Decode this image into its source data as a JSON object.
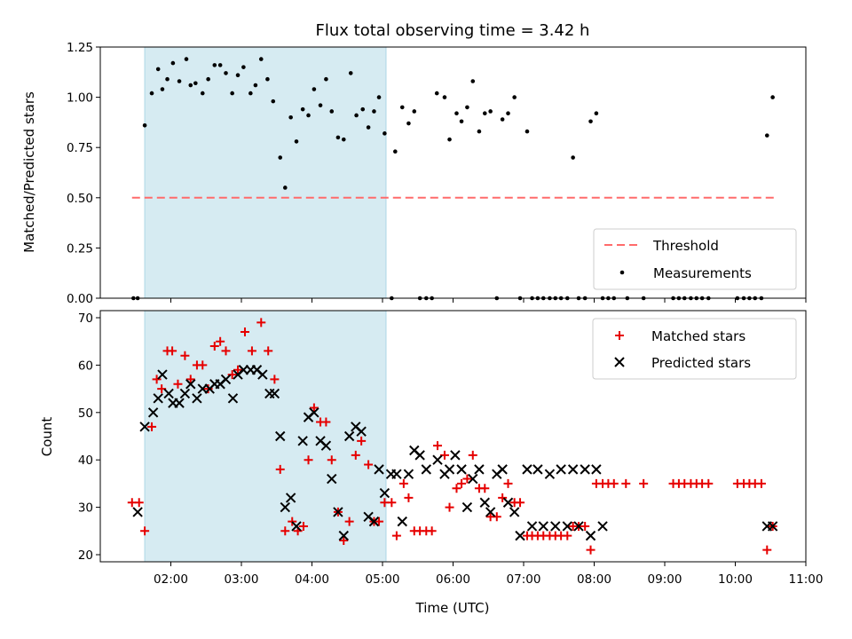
{
  "chart_data": [
    {
      "type": "scatter",
      "title": "Flux total observing time = 3.42 h",
      "xlabel": "",
      "ylabel": "Matched/Predicted stars",
      "xlim": [
        1.0,
        11.0
      ],
      "ylim": [
        0,
        1.25
      ],
      "yticks": [
        "0.00",
        "0.25",
        "0.50",
        "0.75",
        "1.00",
        "1.25"
      ],
      "shaded_interval": [
        1.63,
        5.05
      ],
      "threshold": {
        "name": "Threshold",
        "y": 0.5,
        "x_range": [
          1.45,
          10.55
        ],
        "color": "#ff6b6b"
      },
      "legend": {
        "position": "lower right",
        "entries": [
          "Threshold",
          "Measurements"
        ]
      },
      "series": [
        {
          "name": "Measurements",
          "color": "#000000",
          "x": [
            1.47,
            1.53,
            1.63,
            1.73,
            1.82,
            1.88,
            1.95,
            2.03,
            2.12,
            2.22,
            2.28,
            2.35,
            2.45,
            2.53,
            2.62,
            2.7,
            2.78,
            2.87,
            2.95,
            3.03,
            3.13,
            3.2,
            3.28,
            3.37,
            3.45,
            3.55,
            3.62,
            3.7,
            3.78,
            3.87,
            3.95,
            4.03,
            4.12,
            4.2,
            4.28,
            4.37,
            4.45,
            4.55,
            4.63,
            4.72,
            4.8,
            4.88,
            4.95,
            5.03,
            5.13,
            5.18,
            5.28,
            5.37,
            5.45,
            5.53,
            5.62,
            5.7,
            5.77,
            5.88,
            5.95,
            6.05,
            6.12,
            6.2,
            6.28,
            6.37,
            6.45,
            6.53,
            6.62,
            6.7,
            6.78,
            6.87,
            6.95,
            7.05,
            7.12,
            7.2,
            7.28,
            7.37,
            7.45,
            7.53,
            7.62,
            7.7,
            7.78,
            7.87,
            7.95,
            8.03,
            8.12,
            8.2,
            8.28,
            8.47,
            8.7,
            9.12,
            9.2,
            9.28,
            9.37,
            9.45,
            9.53,
            9.62,
            10.03,
            10.12,
            10.2,
            10.28,
            10.37,
            10.45,
            10.53
          ],
          "y": [
            0,
            0,
            0.86,
            1.02,
            1.14,
            1.04,
            1.09,
            1.17,
            1.08,
            1.19,
            1.06,
            1.07,
            1.02,
            1.09,
            1.16,
            1.16,
            1.12,
            1.02,
            1.11,
            1.15,
            1.02,
            1.06,
            1.19,
            1.09,
            0.98,
            0.7,
            0.55,
            0.9,
            0.78,
            0.94,
            0.91,
            1.04,
            0.96,
            1.09,
            0.93,
            0.8,
            0.79,
            1.12,
            0.91,
            0.94,
            0.85,
            0.93,
            1.0,
            0.82,
            0,
            0.73,
            0.95,
            0.87,
            0.93,
            0,
            0,
            0,
            1.02,
            1.0,
            0.79,
            0.92,
            0.88,
            0.95,
            1.08,
            0.83,
            0.92,
            0.93,
            0,
            0.89,
            0.92,
            1.0,
            0,
            0.83,
            0,
            0,
            0,
            0,
            0,
            0,
            0,
            0.7,
            0,
            0,
            0.88,
            0.92,
            0,
            0,
            0,
            0,
            0,
            0,
            0,
            0,
            0,
            0,
            0,
            0,
            0,
            0,
            0,
            0,
            0,
            0.81,
            1.0
          ]
        }
      ]
    },
    {
      "type": "scatter",
      "title": "",
      "xlabel": "Time (UTC)",
      "ylabel": "Count",
      "xlim": [
        1.0,
        11.0
      ],
      "ylim": [
        18.5,
        71.5
      ],
      "xticks": [
        "02:00",
        "03:00",
        "04:00",
        "05:00",
        "06:00",
        "07:00",
        "08:00",
        "09:00",
        "10:00",
        "11:00"
      ],
      "yticks": [
        "20",
        "30",
        "40",
        "50",
        "60",
        "70"
      ],
      "shaded_interval": [
        1.63,
        5.05
      ],
      "legend": {
        "position": "upper right",
        "entries": [
          "Matched stars",
          "Predicted stars"
        ]
      },
      "series": [
        {
          "name": "Matched stars",
          "marker": "+",
          "color": "#e60000",
          "x": [
            1.45,
            1.55,
            1.63,
            1.73,
            1.8,
            1.87,
            1.95,
            2.02,
            2.1,
            2.2,
            2.28,
            2.37,
            2.45,
            2.53,
            2.62,
            2.7,
            2.78,
            2.87,
            2.95,
            3.05,
            3.15,
            3.28,
            3.38,
            3.47,
            3.55,
            3.62,
            3.72,
            3.8,
            3.88,
            3.95,
            4.03,
            4.12,
            4.2,
            4.28,
            4.37,
            4.45,
            4.53,
            4.62,
            4.7,
            4.8,
            4.88,
            4.95,
            5.03,
            5.13,
            5.2,
            5.3,
            5.37,
            5.45,
            5.53,
            5.62,
            5.7,
            5.78,
            5.88,
            5.95,
            6.05,
            6.12,
            6.2,
            6.28,
            6.37,
            6.45,
            6.53,
            6.62,
            6.7,
            6.78,
            6.87,
            6.95,
            7.05,
            7.12,
            7.2,
            7.28,
            7.37,
            7.45,
            7.53,
            7.62,
            7.7,
            7.78,
            7.87,
            7.95,
            8.03,
            8.12,
            8.2,
            8.28,
            8.45,
            8.7,
            9.12,
            9.2,
            9.28,
            9.37,
            9.45,
            9.53,
            9.62,
            10.03,
            10.12,
            10.2,
            10.28,
            10.37,
            10.45,
            10.53
          ],
          "y": [
            31,
            31,
            25,
            47,
            57,
            55,
            63,
            63,
            56,
            62,
            57,
            60,
            60,
            55,
            64,
            65,
            63,
            58,
            59,
            67,
            63,
            69,
            63,
            57,
            38,
            25,
            27,
            25,
            26,
            40,
            51,
            48,
            48,
            40,
            29,
            23,
            27,
            41,
            44,
            39,
            27,
            27,
            31,
            31,
            24,
            35,
            32,
            25,
            25,
            25,
            25,
            43,
            41,
            30,
            34,
            35,
            36,
            41,
            34,
            34,
            28,
            28,
            32,
            35,
            31,
            31,
            24,
            24,
            24,
            24,
            24,
            24,
            24,
            24,
            26,
            26,
            26,
            21,
            35,
            35,
            35,
            35,
            35,
            35,
            35,
            35,
            35,
            35,
            35,
            35,
            35,
            35,
            35,
            35,
            35,
            35,
            21,
            26
          ]
        },
        {
          "name": "Predicted stars",
          "marker": "x",
          "color": "#000000",
          "x": [
            1.53,
            1.63,
            1.75,
            1.82,
            1.88,
            1.97,
            2.03,
            2.12,
            2.2,
            2.28,
            2.37,
            2.45,
            2.55,
            2.62,
            2.7,
            2.78,
            2.88,
            2.95,
            3.03,
            3.13,
            3.22,
            3.3,
            3.4,
            3.47,
            3.55,
            3.62,
            3.7,
            3.78,
            3.87,
            3.95,
            4.03,
            4.12,
            4.2,
            4.28,
            4.37,
            4.45,
            4.53,
            4.62,
            4.7,
            4.8,
            4.88,
            4.95,
            5.03,
            5.12,
            5.2,
            5.28,
            5.37,
            5.45,
            5.53,
            5.62,
            5.78,
            5.88,
            5.95,
            6.03,
            6.12,
            6.2,
            6.28,
            6.37,
            6.45,
            6.53,
            6.62,
            6.7,
            6.78,
            6.87,
            6.95,
            7.05,
            7.12,
            7.2,
            7.28,
            7.37,
            7.45,
            7.53,
            7.62,
            7.7,
            7.78,
            7.87,
            7.95,
            8.03,
            8.12,
            10.45,
            10.53
          ],
          "y": [
            29,
            47,
            50,
            53,
            58,
            54,
            52,
            52,
            54,
            56,
            53,
            55,
            55,
            56,
            56,
            57,
            53,
            58,
            59,
            59,
            59,
            58,
            54,
            54,
            45,
            30,
            32,
            26,
            44,
            49,
            50,
            44,
            43,
            36,
            29,
            24,
            45,
            47,
            46,
            28,
            27,
            38,
            33,
            37,
            37,
            27,
            37,
            42,
            41,
            38,
            40,
            37,
            38,
            41,
            38,
            30,
            36,
            38,
            31,
            29,
            37,
            38,
            31,
            29,
            24,
            38,
            26,
            38,
            26,
            37,
            26,
            38,
            26,
            38,
            26,
            38,
            24,
            38,
            26,
            26,
            26
          ]
        }
      ]
    }
  ]
}
